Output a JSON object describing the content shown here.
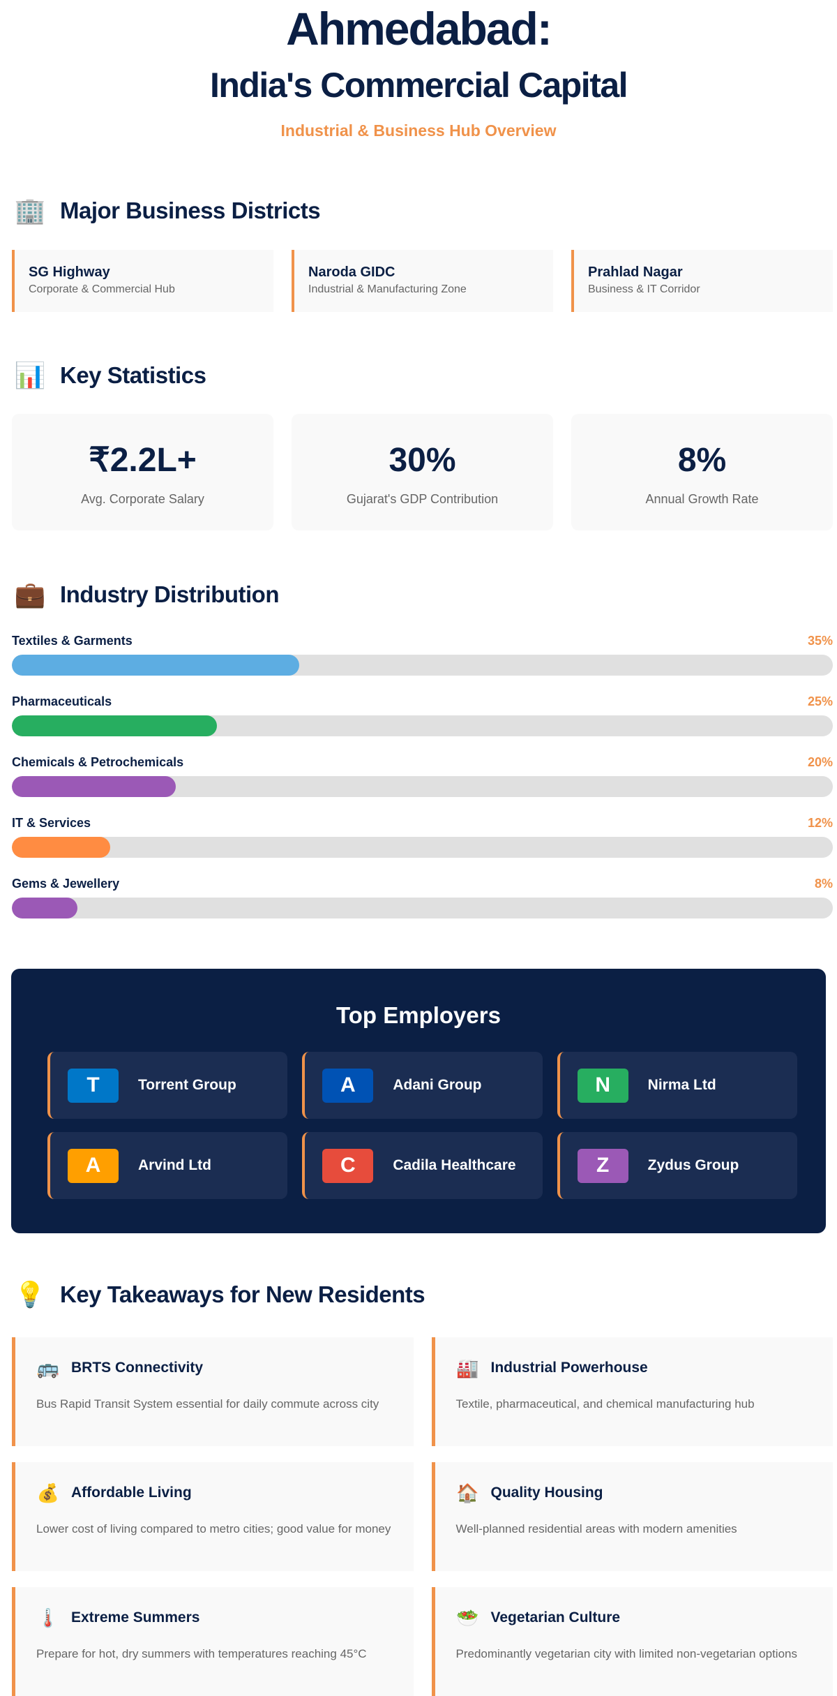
{
  "header": {
    "title_line1": "Ahmedabad:",
    "title_line2": "India's Commercial Capital",
    "subtitle": "Industrial & Business Hub Overview"
  },
  "districts": {
    "heading": "Major Business Districts",
    "icon": "office-building-icon",
    "items": [
      {
        "name": "SG Highway",
        "desc": "Corporate & Commercial Hub"
      },
      {
        "name": "Naroda GIDC",
        "desc": "Industrial & Manufacturing Zone"
      },
      {
        "name": "Prahlad Nagar",
        "desc": "Business & IT Corridor"
      }
    ]
  },
  "stats": {
    "heading": "Key Statistics",
    "icon": "bar-chart-icon",
    "items": [
      {
        "value": "₹2.2L+",
        "label": "Avg. Corporate Salary"
      },
      {
        "value": "30%",
        "label": "Gujarat's GDP Contribution"
      },
      {
        "value": "8%",
        "label": "Annual Growth Rate"
      }
    ]
  },
  "industry": {
    "heading": "Industry Distribution",
    "icon": "briefcase-icon",
    "items": [
      {
        "label": "Textiles & Garments",
        "pct_text": "35%",
        "value": 35,
        "color": "#5dade2"
      },
      {
        "label": "Pharmaceuticals",
        "pct_text": "25%",
        "value": 25,
        "color": "#27ae60"
      },
      {
        "label": "Chemicals & Petrochemicals",
        "pct_text": "20%",
        "value": 20,
        "color": "#9b59b6"
      },
      {
        "label": "IT & Services",
        "pct_text": "12%",
        "value": 12,
        "color": "#ff8c42"
      },
      {
        "label": "Gems & Jewellery",
        "pct_text": "8%",
        "value": 8,
        "color": "#9b59b6"
      }
    ]
  },
  "employers": {
    "heading": "Top Employers",
    "items": [
      {
        "letter": "T",
        "name": "Torrent Group",
        "color": "#0077c8"
      },
      {
        "letter": "A",
        "name": "Adani Group",
        "color": "#0052b4"
      },
      {
        "letter": "N",
        "name": "Nirma Ltd",
        "color": "#27ae60"
      },
      {
        "letter": "A",
        "name": "Arvind Ltd",
        "color": "#ff9f00"
      },
      {
        "letter": "C",
        "name": "Cadila Healthcare",
        "color": "#e74c3c"
      },
      {
        "letter": "Z",
        "name": "Zydus Group",
        "color": "#9b59b6"
      }
    ]
  },
  "takeaways": {
    "heading": "Key Takeaways for New Residents",
    "icon": "light-bulb-icon",
    "items": [
      {
        "icon": "bus-icon",
        "glyph": "🚌",
        "title": "BRTS Connectivity",
        "desc": "Bus Rapid Transit System essential for daily commute across city"
      },
      {
        "icon": "factory-icon",
        "glyph": "🏭",
        "title": "Industrial Powerhouse",
        "desc": "Textile, pharmaceutical, and chemical manufacturing hub"
      },
      {
        "icon": "money-bag-icon",
        "glyph": "💰",
        "title": "Affordable Living",
        "desc": "Lower cost of living compared to metro cities; good value for money"
      },
      {
        "icon": "house-icon",
        "glyph": "🏠",
        "title": "Quality Housing",
        "desc": "Well-planned residential areas with modern amenities"
      },
      {
        "icon": "thermometer-icon",
        "glyph": "🌡️",
        "title": "Extreme Summers",
        "desc": "Prepare for hot, dry summers with temperatures reaching 45°C"
      },
      {
        "icon": "salad-icon",
        "glyph": "🥗",
        "title": "Vegetarian Culture",
        "desc": "Predominantly vegetarian city with limited non-vegetarian options"
      }
    ]
  }
}
